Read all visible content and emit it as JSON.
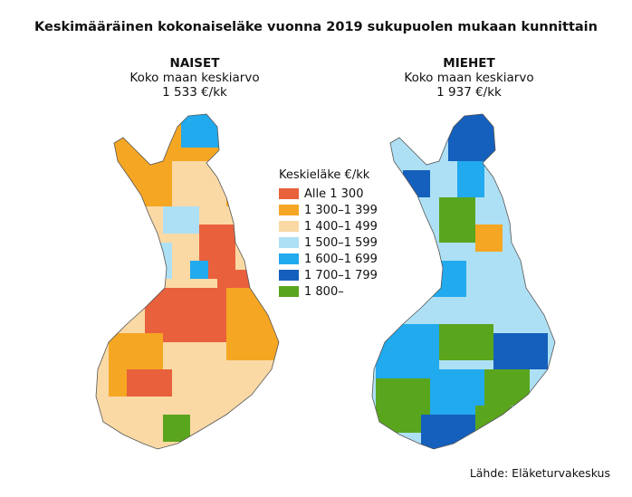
{
  "title": "Keskimääräinen kokonaiseläke vuonna 2019 sukupuolen mukaan kunnittain",
  "panels": {
    "left": {
      "heading": "NAISET",
      "subheading": "Koko maan keskiarvo",
      "value": "1 533 €/kk"
    },
    "right": {
      "heading": "MIEHET",
      "subheading": "Koko maan keskiarvo",
      "value": "1 937 €/kk"
    }
  },
  "legend": {
    "title": "Keskieläke €/kk",
    "items": [
      {
        "label": "Alle 1 300",
        "color": "#e8603c"
      },
      {
        "label": "1 300–1 399",
        "color": "#f5a623"
      },
      {
        "label": "1 400–1 499",
        "color": "#fad9a5"
      },
      {
        "label": "1 500–1 599",
        "color": "#aee0f5"
      },
      {
        "label": "1 600–1 699",
        "color": "#22aaee"
      },
      {
        "label": "1 700–1 799",
        "color": "#1560bd"
      },
      {
        "label": "1 800–",
        "color": "#5aa51e"
      }
    ]
  },
  "source": "Lähde: Eläketurvakeskus"
}
